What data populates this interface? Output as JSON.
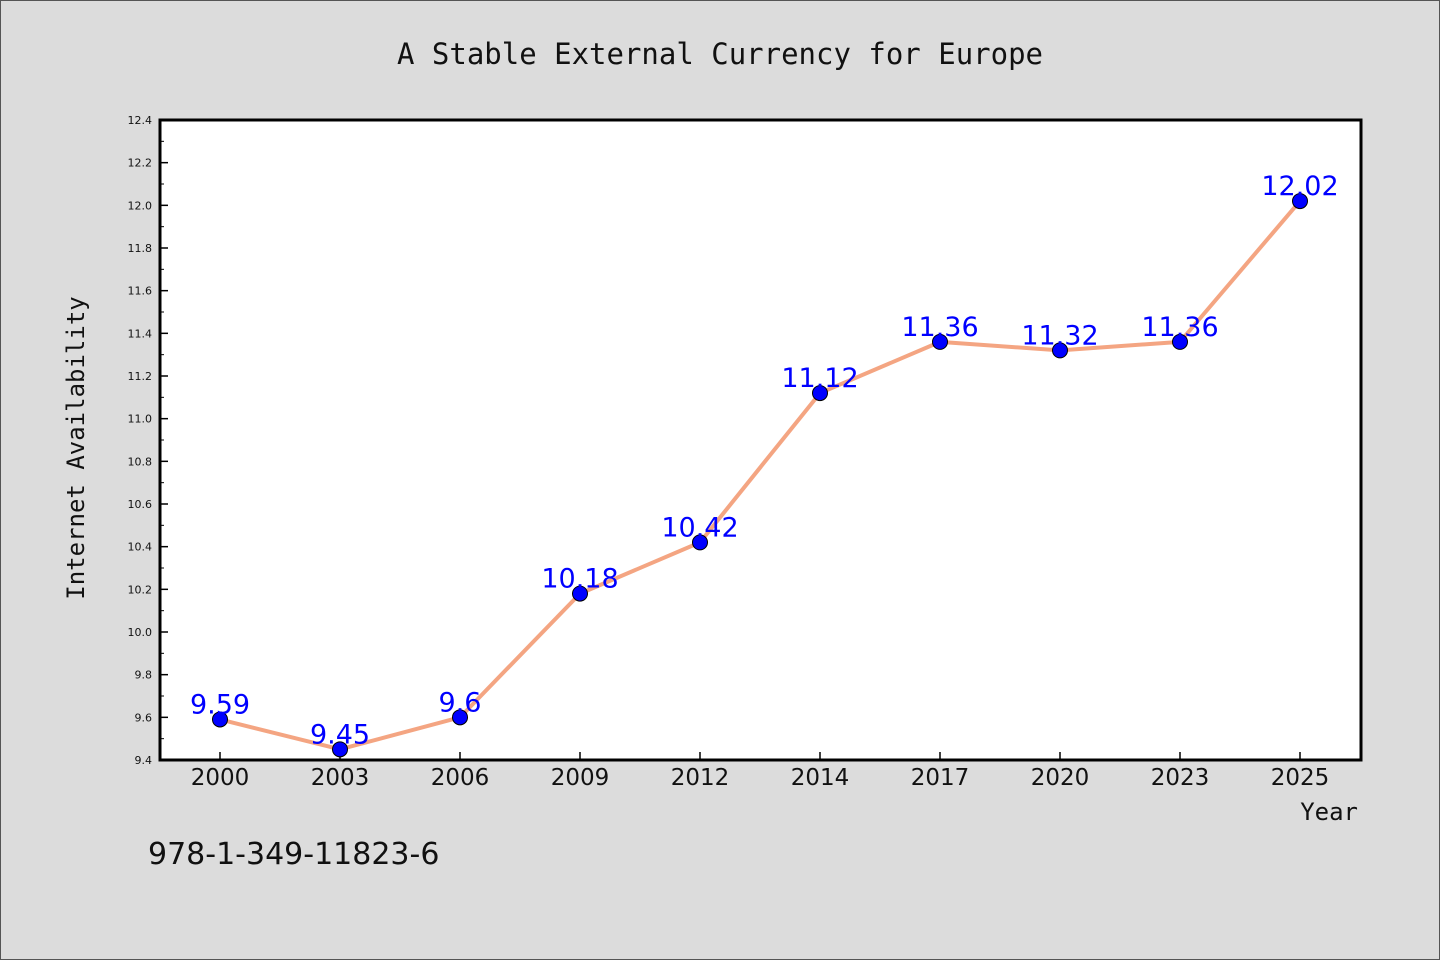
{
  "chart_data": {
    "type": "line",
    "title": "A Stable External Currency for Europe",
    "xlabel": "Year",
    "ylabel": "Internet Availability",
    "categories": [
      "2000",
      "2003",
      "2006",
      "2009",
      "2012",
      "2014",
      "2017",
      "2020",
      "2023",
      "2025"
    ],
    "values": [
      9.59,
      9.45,
      9.6,
      10.18,
      10.42,
      11.12,
      11.36,
      11.32,
      11.36,
      12.02
    ],
    "data_labels": [
      "9.59",
      "9.45",
      "9.6",
      "10.18",
      "10.42",
      "11.12",
      "11.36",
      "11.32",
      "11.36",
      "12.02"
    ],
    "ylim": [
      9.4,
      12.4
    ],
    "yticks": [
      "9.4",
      "9.6",
      "9.8",
      "10.0",
      "10.2",
      "10.4",
      "10.6",
      "10.8",
      "11.0",
      "11.2",
      "11.4",
      "11.6",
      "11.8",
      "12.0",
      "12.2",
      "12.4"
    ],
    "grid": false,
    "legend": "none",
    "colors": {
      "line": "#f4a582",
      "marker": "#0000ff",
      "data_label": "#0000ff",
      "background": "#dcdcdc",
      "plot_area": "#ffffff"
    }
  },
  "footnote": "978-1-349-11823-6"
}
